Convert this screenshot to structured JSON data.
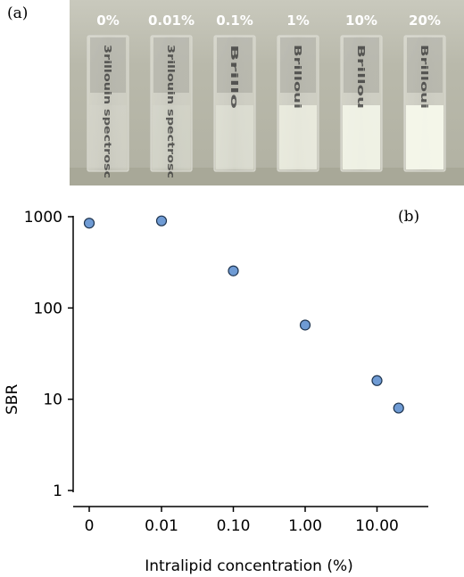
{
  "panel_a": {
    "label": "(a)",
    "samples": [
      {
        "concentration_label": "0%",
        "cuvette_text": "3rillouin spectrosc",
        "turbidity": 0.0
      },
      {
        "concentration_label": "0.01%",
        "cuvette_text": "3rillouin spectrosc",
        "turbidity": 0.05
      },
      {
        "concentration_label": "0.1%",
        "cuvette_text": "Brillo",
        "turbidity": 0.35
      },
      {
        "concentration_label": "1%",
        "cuvette_text": "Brilloui",
        "turbidity": 0.7
      },
      {
        "concentration_label": "10%",
        "cuvette_text": "Brillou",
        "turbidity": 0.9
      },
      {
        "concentration_label": "20%",
        "cuvette_text": "Brilloui",
        "turbidity": 1.0
      }
    ]
  },
  "panel_b": {
    "label": "(b)"
  },
  "chart_data": {
    "type": "scatter",
    "title": "",
    "xlabel": "Intralipid concentration (%)",
    "ylabel": "SBR",
    "y_scale": "log",
    "ylim": [
      1,
      1000
    ],
    "y_ticks": [
      "1",
      "10",
      "100",
      "1000"
    ],
    "x_scale": "categorical-log-like",
    "x_ticks": [
      "0",
      "0.01",
      "0.10",
      "1.00",
      "10.00"
    ],
    "grid": false,
    "legend": "none",
    "marker_color": "#6f9bd4",
    "marker_edge": "#1f3550",
    "points": [
      {
        "x": "0",
        "y": 850
      },
      {
        "x": "0.01",
        "y": 900
      },
      {
        "x": "0.1",
        "y": 255
      },
      {
        "x": "1",
        "y": 65
      },
      {
        "x": "10",
        "y": 16
      },
      {
        "x": "20",
        "y": 8
      }
    ]
  }
}
